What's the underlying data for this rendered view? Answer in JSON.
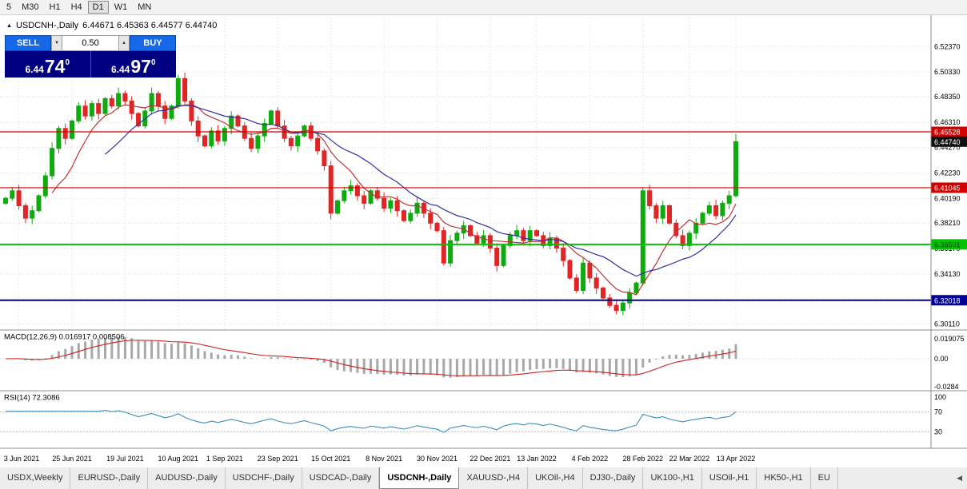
{
  "toolbar": {
    "timeframes": [
      "5",
      "M30",
      "H1",
      "H4",
      "D1",
      "W1",
      "MN"
    ],
    "active_timeframe": "D1"
  },
  "chart_header": {
    "dropdown_icon": "▲",
    "symbol": "USDCNH-,Daily",
    "ohlc_text": "6.44671 6.45363 6.44577 6.44740",
    "ohlc_values": [
      6.44671,
      6.45363,
      6.44577,
      6.4474
    ]
  },
  "trade_panel": {
    "sell_label": "SELL",
    "buy_label": "BUY",
    "volume": "0.50",
    "spin_down_icon": "▼",
    "spin_up_icon": "▲",
    "sell_price": {
      "prefix": "6.44",
      "big": "74",
      "sup": "0"
    },
    "buy_price": {
      "prefix": "6.44",
      "big": "97",
      "sup": "0"
    }
  },
  "chart_data": {
    "type": "candlestick",
    "title": "USDCNH-,Daily",
    "price_axis_ticks": [
      "6.52370",
      "6.50330",
      "6.48350",
      "6.46310",
      "6.44270",
      "6.42230",
      "6.40190",
      "6.38210",
      "6.36170",
      "6.34130",
      "6.32090",
      "6.30110"
    ],
    "date_labels": [
      "3 Jun 2021",
      "25 Jun 2021",
      "19 Jul 2021",
      "10 Aug 2021",
      "1 Sep 2021",
      "23 Sep 2021",
      "15 Oct 2021",
      "8 Nov 2021",
      "30 Nov 2021",
      "22 Dec 2021",
      "13 Jan 2022",
      "4 Feb 2022",
      "28 Feb 2022",
      "22 Mar 2022",
      "13 Apr 2022"
    ],
    "date_indices": [
      2,
      10,
      18,
      26,
      33,
      41,
      49,
      57,
      65,
      73,
      80,
      88,
      96,
      103,
      110
    ],
    "closes": [
      6.402,
      6.408,
      6.396,
      6.386,
      6.392,
      6.404,
      6.42,
      6.442,
      6.458,
      6.45,
      6.464,
      6.476,
      6.468,
      6.478,
      6.47,
      6.482,
      6.476,
      6.486,
      6.48,
      6.47,
      6.46,
      6.472,
      6.486,
      6.476,
      6.466,
      6.476,
      6.498,
      6.48,
      6.464,
      6.452,
      6.444,
      6.456,
      6.448,
      6.458,
      6.468,
      6.46,
      6.45,
      6.442,
      6.452,
      6.462,
      6.472,
      6.46,
      6.45,
      6.444,
      6.452,
      6.46,
      6.45,
      6.44,
      6.428,
      6.39,
      6.4,
      6.408,
      6.412,
      6.404,
      6.398,
      6.408,
      6.402,
      6.394,
      6.4,
      6.392,
      6.384,
      6.39,
      6.398,
      6.39,
      6.382,
      6.376,
      6.35,
      6.368,
      6.374,
      6.38,
      6.372,
      6.366,
      6.372,
      6.362,
      6.348,
      6.364,
      6.372,
      6.376,
      6.368,
      6.376,
      6.372,
      6.364,
      6.37,
      6.362,
      6.352,
      6.338,
      6.328,
      6.35,
      6.338,
      6.33,
      6.322,
      6.316,
      6.312,
      6.318,
      6.326,
      6.334,
      6.408,
      6.396,
      6.386,
      6.396,
      6.382,
      6.372,
      6.364,
      6.374,
      6.382,
      6.39,
      6.396,
      6.388,
      6.398,
      6.404,
      6.4474
    ],
    "hlines": [
      {
        "price": 6.45528,
        "label": "6.45528",
        "color": "#d40000",
        "text": "#ffffff",
        "width": 1.2
      },
      {
        "price": 6.41045,
        "label": "6.41045",
        "color": "#d40000",
        "text": "#ffffff",
        "width": 1.2
      },
      {
        "price": 6.36501,
        "label": "6.36501",
        "color": "#00c400",
        "text": "#003300",
        "width": 2
      },
      {
        "price": 6.32018,
        "label": "6.32018",
        "color": "#000096",
        "text": "#ffffff",
        "width": 2
      }
    ],
    "current_price": {
      "value": 6.4474,
      "label": "6.44740",
      "bg": "#111111",
      "text": "#ffffff"
    },
    "up_color": "#0faa0f",
    "down_color": "#e02525",
    "ma_fast_color": "#c03333",
    "ma_slow_color": "#3030a0",
    "indicators": {
      "macd": {
        "label": "MACD(12,26,9) 0.016917 0.008506",
        "axis_labels": [
          "0.019075",
          "0.00",
          "-0.0284"
        ],
        "histogram_color": "#a8a8a8",
        "signal_color": "#cc2020"
      },
      "rsi": {
        "label": "RSI(14) 72.3086",
        "value": 72.3086,
        "axis_labels": [
          "100",
          "70",
          "30"
        ],
        "levels": [
          70,
          30
        ],
        "line_color": "#3c8ebc"
      }
    }
  },
  "bottom_tabs": {
    "items": [
      "USDX,Weekly",
      "EURUSD-,Daily",
      "AUDUSD-,Daily",
      "USDCHF-,Daily",
      "USDCAD-,Daily",
      "USDCNH-,Daily",
      "XAUUSD-,H4",
      "UKOil-,H4",
      "DJ30-,Daily",
      "UK100-,H1",
      "USOil-,H1",
      "HK50-,H1",
      "EU"
    ],
    "active": "USDCNH-,Daily",
    "scroll_left_icon": "◀"
  }
}
